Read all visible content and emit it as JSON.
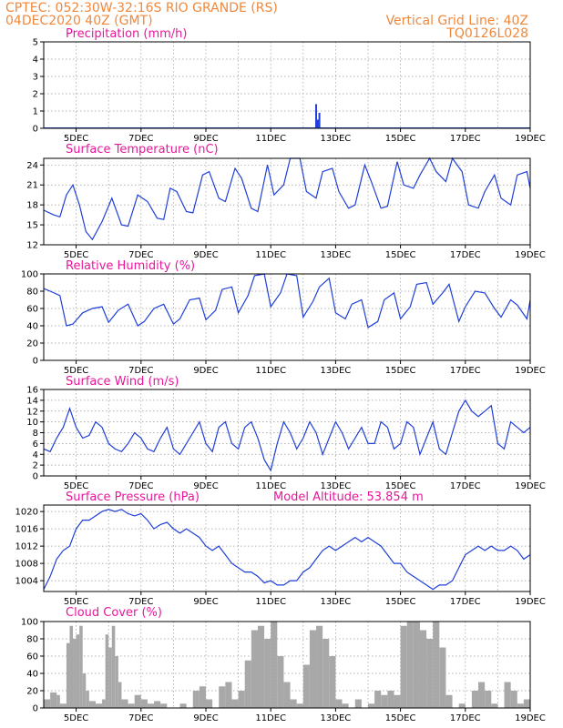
{
  "header": {
    "line1": "CPTEC:  052:30W-32:16S  RIO GRANDE (RS)",
    "line2": "04DEC2020 40Z (GMT)",
    "right1": "Vertical Grid Line: 40Z",
    "right2": "TQ0126L028"
  },
  "colors": {
    "line": "#1f3fd8",
    "bar": "#1f3fd8",
    "cloud": "#a8a8a8",
    "title": "#e8179a",
    "header": "#f0883c"
  },
  "chart_data": [
    {
      "type": "bar",
      "title": "Precipitation (mm/h)",
      "xlim": [
        4,
        19
      ],
      "ylim": [
        0,
        5
      ],
      "yticks": [
        "0",
        "1",
        "2",
        "3",
        "4",
        "5"
      ],
      "xticks": [
        "5DEC",
        "7DEC",
        "9DEC",
        "11DEC",
        "13DEC",
        "15DEC",
        "17DEC",
        "19DEC"
      ],
      "x": [
        12.4,
        12.45,
        12.5
      ],
      "values": [
        1.4,
        0.5,
        0.9
      ]
    },
    {
      "type": "line",
      "title": "Surface Temperature (nC)",
      "xlim": [
        4,
        19
      ],
      "ylim": [
        12,
        25
      ],
      "yticks": [
        "12",
        "15",
        "18",
        "21",
        "24"
      ],
      "xticks": [
        "5DEC",
        "7DEC",
        "9DEC",
        "11DEC",
        "13DEC",
        "15DEC",
        "17DEC",
        "19DEC"
      ],
      "x": [
        4.0,
        4.3,
        4.5,
        4.7,
        4.9,
        5.1,
        5.3,
        5.5,
        5.8,
        6.1,
        6.4,
        6.6,
        6.9,
        7.2,
        7.5,
        7.7,
        7.9,
        8.1,
        8.4,
        8.6,
        8.9,
        9.1,
        9.4,
        9.6,
        9.9,
        10.1,
        10.4,
        10.6,
        10.9,
        11.1,
        11.4,
        11.6,
        11.9,
        12.1,
        12.4,
        12.6,
        12.9,
        13.1,
        13.4,
        13.6,
        13.9,
        14.1,
        14.4,
        14.6,
        14.9,
        15.1,
        15.4,
        15.6,
        15.9,
        16.1,
        16.4,
        16.6,
        16.9,
        17.1,
        17.4,
        17.6,
        17.9,
        18.1,
        18.4,
        18.6,
        18.9,
        19.0
      ],
      "values": [
        17.2,
        16.5,
        16.2,
        19.5,
        21.0,
        18.0,
        14.0,
        12.8,
        15.5,
        19.0,
        15.0,
        14.8,
        19.5,
        18.5,
        16.0,
        15.8,
        20.5,
        20.0,
        17.0,
        16.8,
        22.5,
        23.0,
        19.0,
        18.5,
        23.5,
        22.0,
        17.5,
        17.0,
        24.0,
        19.5,
        21.0,
        25.5,
        25.0,
        20.0,
        19.0,
        23.0,
        23.5,
        20.0,
        17.5,
        18.0,
        24.0,
        21.5,
        17.5,
        17.8,
        24.5,
        21.0,
        20.5,
        22.5,
        25.5,
        23.0,
        21.5,
        25.5,
        23.0,
        18.0,
        17.5,
        20.0,
        22.5,
        19.0,
        18.0,
        22.5,
        23.0,
        20.5
      ]
    },
    {
      "type": "line",
      "title": "Relative Humidity (%)",
      "xlim": [
        4,
        19
      ],
      "ylim": [
        0,
        100
      ],
      "yticks": [
        "0",
        "20",
        "40",
        "60",
        "80",
        "100"
      ],
      "xticks": [
        "5DEC",
        "7DEC",
        "9DEC",
        "11DEC",
        "13DEC",
        "15DEC",
        "17DEC",
        "19DEC"
      ],
      "x": [
        4.0,
        4.2,
        4.5,
        4.7,
        4.9,
        5.2,
        5.5,
        5.8,
        6.0,
        6.3,
        6.6,
        6.9,
        7.1,
        7.4,
        7.7,
        8.0,
        8.2,
        8.5,
        8.8,
        9.0,
        9.3,
        9.5,
        9.8,
        10.0,
        10.3,
        10.5,
        10.8,
        11.0,
        11.3,
        11.5,
        11.8,
        12.0,
        12.3,
        12.5,
        12.8,
        13.0,
        13.3,
        13.5,
        13.8,
        14.0,
        14.3,
        14.5,
        14.8,
        15.0,
        15.3,
        15.5,
        15.8,
        16.0,
        16.3,
        16.5,
        16.8,
        17.0,
        17.3,
        17.6,
        17.9,
        18.1,
        18.4,
        18.6,
        18.9,
        19.0
      ],
      "values": [
        83,
        80,
        75,
        40,
        42,
        55,
        60,
        62,
        44,
        58,
        65,
        40,
        45,
        60,
        65,
        42,
        48,
        70,
        72,
        47,
        58,
        82,
        85,
        55,
        75,
        98,
        100,
        62,
        78,
        100,
        98,
        50,
        68,
        85,
        95,
        55,
        48,
        65,
        70,
        38,
        45,
        70,
        78,
        48,
        62,
        88,
        90,
        65,
        78,
        88,
        45,
        62,
        80,
        78,
        60,
        50,
        70,
        64,
        48,
        70
      ]
    },
    {
      "type": "line",
      "title": "Surface Wind (m/s)",
      "xlim": [
        4,
        19
      ],
      "ylim": [
        0,
        16
      ],
      "yticks": [
        "0",
        "2",
        "4",
        "6",
        "8",
        "10",
        "12",
        "14",
        "16"
      ],
      "xticks": [
        "5DEC",
        "7DEC",
        "9DEC",
        "11DEC",
        "13DEC",
        "15DEC",
        "17DEC",
        "19DEC"
      ],
      "x": [
        4.0,
        4.2,
        4.4,
        4.6,
        4.8,
        5.0,
        5.2,
        5.4,
        5.6,
        5.8,
        6.0,
        6.2,
        6.4,
        6.6,
        6.8,
        7.0,
        7.2,
        7.4,
        7.6,
        7.8,
        8.0,
        8.2,
        8.4,
        8.6,
        8.8,
        9.0,
        9.2,
        9.4,
        9.6,
        9.8,
        10.0,
        10.2,
        10.4,
        10.6,
        10.8,
        11.0,
        11.2,
        11.4,
        11.6,
        11.8,
        12.0,
        12.2,
        12.4,
        12.6,
        12.8,
        13.0,
        13.2,
        13.4,
        13.6,
        13.8,
        14.0,
        14.2,
        14.4,
        14.6,
        14.8,
        15.0,
        15.2,
        15.4,
        15.6,
        15.8,
        16.0,
        16.2,
        16.4,
        16.6,
        16.8,
        17.0,
        17.2,
        17.4,
        17.6,
        17.8,
        18.0,
        18.2,
        18.4,
        18.6,
        18.8,
        19.0
      ],
      "values": [
        5,
        4.5,
        7,
        9,
        12.5,
        9,
        7,
        7.5,
        10,
        9,
        6,
        5,
        4.5,
        6,
        8,
        7,
        5,
        4.5,
        7,
        9,
        5,
        4,
        6,
        8,
        10,
        6,
        4.5,
        9,
        10,
        6,
        5,
        9,
        10,
        7,
        3,
        1,
        6,
        10,
        8,
        5,
        7,
        10,
        8,
        4,
        7,
        10,
        8,
        5,
        7,
        9,
        6,
        6,
        10,
        9,
        5,
        6,
        10,
        9,
        4,
        7,
        10,
        5,
        4,
        8,
        12,
        14,
        12,
        11,
        12,
        13,
        6,
        5,
        10,
        9,
        8,
        9
      ]
    },
    {
      "type": "line",
      "title": "Surface Pressure (hPa)",
      "subtitle": "Model Altitude: 53.854 m",
      "xlim": [
        4,
        19
      ],
      "ylim": [
        1001.5,
        1021.5
      ],
      "yticks": [
        "1004",
        "1008",
        "1012",
        "1016",
        "1020"
      ],
      "xticks": [
        "5DEC",
        "7DEC",
        "9DEC",
        "11DEC",
        "13DEC",
        "15DEC",
        "17DEC",
        "19DEC"
      ],
      "x": [
        4.0,
        4.2,
        4.4,
        4.6,
        4.8,
        5.0,
        5.2,
        5.4,
        5.6,
        5.8,
        6.0,
        6.2,
        6.4,
        6.6,
        6.8,
        7.0,
        7.2,
        7.4,
        7.6,
        7.8,
        8.0,
        8.2,
        8.4,
        8.6,
        8.8,
        9.0,
        9.2,
        9.4,
        9.6,
        9.8,
        10.0,
        10.2,
        10.4,
        10.6,
        10.8,
        11.0,
        11.2,
        11.4,
        11.6,
        11.8,
        12.0,
        12.2,
        12.4,
        12.6,
        12.8,
        13.0,
        13.2,
        13.4,
        13.6,
        13.8,
        14.0,
        14.2,
        14.4,
        14.6,
        14.8,
        15.0,
        15.2,
        15.4,
        15.6,
        15.8,
        16.0,
        16.2,
        16.4,
        16.6,
        16.8,
        17.0,
        17.2,
        17.4,
        17.6,
        17.8,
        18.0,
        18.2,
        18.4,
        18.6,
        18.8,
        19.0
      ],
      "values": [
        1002,
        1005,
        1009,
        1011,
        1012,
        1016,
        1018,
        1018,
        1019,
        1020,
        1020.5,
        1020,
        1020.5,
        1019.5,
        1019,
        1019.5,
        1018,
        1016,
        1017,
        1017.5,
        1016,
        1015,
        1016,
        1015,
        1014,
        1012,
        1011,
        1012,
        1010,
        1008,
        1007,
        1006,
        1006,
        1005,
        1003.5,
        1004,
        1003,
        1003,
        1004,
        1004,
        1006,
        1007,
        1009,
        1011,
        1012,
        1011,
        1012,
        1013,
        1014,
        1013,
        1014,
        1013,
        1012,
        1010,
        1008,
        1008,
        1006,
        1005,
        1004,
        1003,
        1002,
        1003,
        1003,
        1004,
        1007,
        1010,
        1011,
        1012,
        1011,
        1012,
        1011,
        1011,
        1012,
        1011,
        1009,
        1010
      ]
    },
    {
      "type": "area",
      "title": "Cloud Cover (%)",
      "xlim": [
        4,
        19
      ],
      "ylim": [
        0,
        100
      ],
      "yticks": [
        "0",
        "20",
        "40",
        "60",
        "80",
        "100"
      ],
      "xticks": [
        "5DEC",
        "7DEC",
        "9DEC",
        "11DEC",
        "13DEC",
        "15DEC",
        "17DEC",
        "19DEC"
      ],
      "x": [
        4.0,
        4.2,
        4.4,
        4.5,
        4.6,
        4.7,
        4.8,
        4.9,
        5.0,
        5.1,
        5.2,
        5.3,
        5.4,
        5.6,
        5.8,
        5.9,
        6.0,
        6.1,
        6.2,
        6.3,
        6.4,
        6.6,
        6.8,
        7.0,
        7.2,
        7.4,
        7.6,
        7.8,
        8.0,
        8.2,
        8.4,
        8.6,
        8.8,
        9.0,
        9.2,
        9.4,
        9.6,
        9.8,
        10.0,
        10.2,
        10.4,
        10.6,
        10.8,
        11.0,
        11.2,
        11.4,
        11.6,
        11.8,
        12.0,
        12.2,
        12.4,
        12.6,
        12.8,
        13.0,
        13.2,
        13.4,
        13.6,
        13.8,
        14.0,
        14.2,
        14.4,
        14.6,
        14.8,
        15.0,
        15.2,
        15.4,
        15.6,
        15.8,
        16.0,
        16.2,
        16.4,
        16.6,
        16.8,
        17.0,
        17.2,
        17.4,
        17.6,
        17.8,
        18.0,
        18.2,
        18.4,
        18.6,
        18.8,
        19.0
      ],
      "values": [
        10,
        18,
        15,
        5,
        5,
        75,
        95,
        80,
        85,
        95,
        40,
        20,
        8,
        5,
        10,
        85,
        70,
        95,
        60,
        30,
        10,
        5,
        15,
        10,
        5,
        8,
        5,
        0,
        0,
        5,
        0,
        20,
        25,
        10,
        0,
        25,
        30,
        10,
        20,
        55,
        90,
        95,
        80,
        100,
        60,
        30,
        10,
        5,
        50,
        90,
        95,
        80,
        60,
        10,
        5,
        0,
        10,
        0,
        5,
        20,
        15,
        20,
        15,
        95,
        100,
        100,
        90,
        80,
        100,
        70,
        15,
        0,
        5,
        0,
        20,
        30,
        20,
        5,
        0,
        30,
        20,
        5,
        10,
        5
      ]
    }
  ]
}
